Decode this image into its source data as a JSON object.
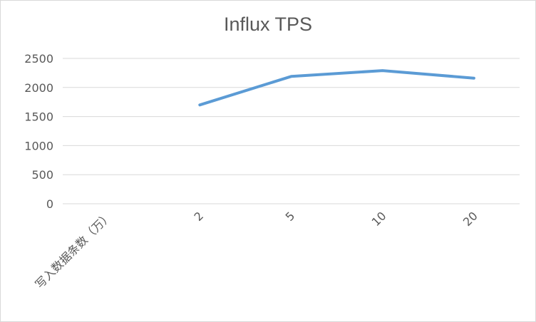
{
  "chart_data": {
    "type": "line",
    "title": "Influx TPS",
    "categories": [
      "写入数据条数（万）",
      "2",
      "5",
      "10",
      "20"
    ],
    "series": [
      {
        "name": "",
        "values": [
          null,
          1700,
          2190,
          2290,
          2160
        ],
        "color": "#5b9bd5"
      }
    ],
    "ylim": [
      0,
      2500
    ],
    "yticks": [
      0,
      500,
      1000,
      1500,
      2000,
      2500
    ],
    "grid": true,
    "legend": "none"
  }
}
